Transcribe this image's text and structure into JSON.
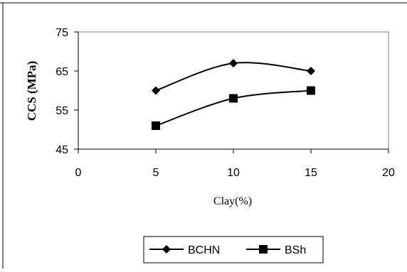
{
  "chart_data": {
    "type": "line",
    "ylabel": "CCS (MPa)",
    "xlabel": "Clay(%)",
    "xlim": [
      0,
      20
    ],
    "ylim": [
      45,
      75
    ],
    "x_ticks": [
      "0",
      "5",
      "10",
      "15",
      "20"
    ],
    "y_ticks": [
      "45",
      "55",
      "65",
      "75"
    ],
    "grid": false,
    "legend_position": "bottom",
    "series": [
      {
        "name": "BCHN",
        "marker": "diamond",
        "x": [
          5,
          10,
          15
        ],
        "values": [
          60,
          67,
          65
        ],
        "color": "#000000"
      },
      {
        "name": "BSh",
        "marker": "square",
        "x": [
          5,
          10,
          15
        ],
        "values": [
          51,
          58,
          60
        ],
        "color": "#000000"
      }
    ]
  }
}
